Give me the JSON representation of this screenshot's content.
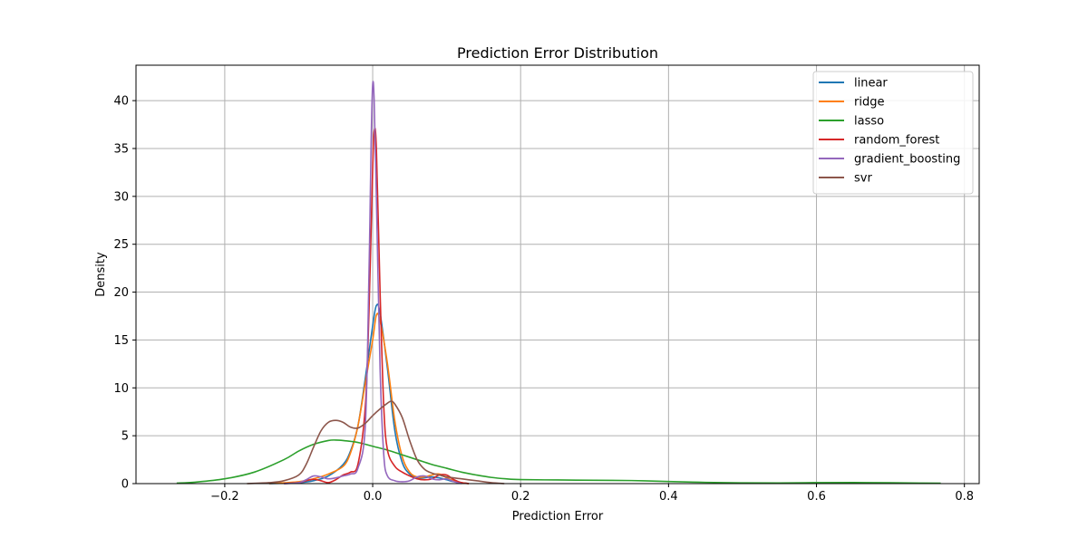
{
  "chart_data": {
    "type": "line",
    "title": "Prediction Error Distribution",
    "xlabel": "Prediction Error",
    "ylabel": "Density",
    "xlim": [
      -0.32,
      0.82
    ],
    "ylim": [
      0,
      43.7
    ],
    "xticks": [
      -0.2,
      0.0,
      0.2,
      0.4,
      0.6,
      0.8
    ],
    "xtick_labels": [
      "−0.2",
      "0.0",
      "0.2",
      "0.4",
      "0.6",
      "0.8"
    ],
    "yticks": [
      0,
      5,
      10,
      15,
      20,
      25,
      30,
      35,
      40
    ],
    "ytick_labels": [
      "0",
      "5",
      "10",
      "15",
      "20",
      "25",
      "30",
      "35",
      "40"
    ],
    "grid": true,
    "legend_position": "top-right",
    "series": [
      {
        "name": "linear",
        "color": "#1f77b4",
        "points": [
          [
            -0.14,
            0
          ],
          [
            -0.1,
            0.1
          ],
          [
            -0.08,
            0.3
          ],
          [
            -0.06,
            0.8
          ],
          [
            -0.04,
            2.0
          ],
          [
            -0.03,
            3.4
          ],
          [
            -0.02,
            6.0
          ],
          [
            -0.01,
            11.0
          ],
          [
            0.0,
            16.5
          ],
          [
            0.005,
            18.6
          ],
          [
            0.01,
            17.8
          ],
          [
            0.02,
            12.0
          ],
          [
            0.03,
            5.5
          ],
          [
            0.04,
            2.2
          ],
          [
            0.05,
            1.0
          ],
          [
            0.06,
            0.6
          ],
          [
            0.07,
            0.6
          ],
          [
            0.08,
            0.7
          ],
          [
            0.09,
            0.6
          ],
          [
            0.1,
            0.4
          ],
          [
            0.11,
            0.2
          ],
          [
            0.13,
            0
          ]
        ]
      },
      {
        "name": "ridge",
        "color": "#ff7f0e",
        "points": [
          [
            -0.14,
            0
          ],
          [
            -0.1,
            0.2
          ],
          [
            -0.08,
            0.5
          ],
          [
            -0.06,
            1.0
          ],
          [
            -0.04,
            1.8
          ],
          [
            -0.03,
            3.2
          ],
          [
            -0.02,
            6.0
          ],
          [
            -0.01,
            10.5
          ],
          [
            0.0,
            15.0
          ],
          [
            0.005,
            17.6
          ],
          [
            0.01,
            17.0
          ],
          [
            0.02,
            12.5
          ],
          [
            0.03,
            6.5
          ],
          [
            0.04,
            2.8
          ],
          [
            0.05,
            1.2
          ],
          [
            0.06,
            0.7
          ],
          [
            0.07,
            0.7
          ],
          [
            0.08,
            0.9
          ],
          [
            0.09,
            1.0
          ],
          [
            0.1,
            0.6
          ],
          [
            0.11,
            0.3
          ],
          [
            0.12,
            0.1
          ],
          [
            0.13,
            0
          ]
        ]
      },
      {
        "name": "lasso",
        "color": "#2ca02c",
        "points": [
          [
            -0.265,
            0.05
          ],
          [
            -0.24,
            0.15
          ],
          [
            -0.2,
            0.5
          ],
          [
            -0.16,
            1.2
          ],
          [
            -0.12,
            2.5
          ],
          [
            -0.1,
            3.4
          ],
          [
            -0.08,
            4.1
          ],
          [
            -0.06,
            4.5
          ],
          [
            -0.05,
            4.55
          ],
          [
            -0.04,
            4.5
          ],
          [
            -0.02,
            4.3
          ],
          [
            0.0,
            3.9
          ],
          [
            0.02,
            3.5
          ],
          [
            0.04,
            3.0
          ],
          [
            0.06,
            2.5
          ],
          [
            0.08,
            2.0
          ],
          [
            0.1,
            1.6
          ],
          [
            0.12,
            1.2
          ],
          [
            0.14,
            0.9
          ],
          [
            0.16,
            0.65
          ],
          [
            0.18,
            0.5
          ],
          [
            0.2,
            0.42
          ],
          [
            0.25,
            0.38
          ],
          [
            0.3,
            0.35
          ],
          [
            0.35,
            0.32
          ],
          [
            0.4,
            0.22
          ],
          [
            0.45,
            0.13
          ],
          [
            0.5,
            0.08
          ],
          [
            0.55,
            0.07
          ],
          [
            0.6,
            0.1
          ],
          [
            0.65,
            0.11
          ],
          [
            0.7,
            0.09
          ],
          [
            0.74,
            0.06
          ],
          [
            0.768,
            0.04
          ]
        ]
      },
      {
        "name": "random_forest",
        "color": "#d62728",
        "points": [
          [
            -0.12,
            0
          ],
          [
            -0.1,
            0.1
          ],
          [
            -0.09,
            0.3
          ],
          [
            -0.08,
            0.45
          ],
          [
            -0.07,
            0.3
          ],
          [
            -0.06,
            0.1
          ],
          [
            -0.05,
            0.4
          ],
          [
            -0.04,
            0.9
          ],
          [
            -0.03,
            1.2
          ],
          [
            -0.02,
            2.0
          ],
          [
            -0.01,
            8.0
          ],
          [
            -0.005,
            18.0
          ],
          [
            0.0,
            33.0
          ],
          [
            0.002,
            36.8
          ],
          [
            0.005,
            35.0
          ],
          [
            0.01,
            20.0
          ],
          [
            0.015,
            8.0
          ],
          [
            0.02,
            3.5
          ],
          [
            0.03,
            1.8
          ],
          [
            0.04,
            1.2
          ],
          [
            0.05,
            0.8
          ],
          [
            0.06,
            0.5
          ],
          [
            0.07,
            0.4
          ],
          [
            0.08,
            0.5
          ],
          [
            0.09,
            0.9
          ],
          [
            0.1,
            0.9
          ],
          [
            0.11,
            0.4
          ],
          [
            0.12,
            0.1
          ],
          [
            0.13,
            0
          ]
        ]
      },
      {
        "name": "gradient_boosting",
        "color": "#9467bd",
        "points": [
          [
            -0.12,
            0
          ],
          [
            -0.1,
            0.1
          ],
          [
            -0.09,
            0.4
          ],
          [
            -0.08,
            0.8
          ],
          [
            -0.07,
            0.7
          ],
          [
            -0.06,
            0.5
          ],
          [
            -0.05,
            0.6
          ],
          [
            -0.04,
            0.8
          ],
          [
            -0.03,
            1.0
          ],
          [
            -0.02,
            1.6
          ],
          [
            -0.01,
            6.0
          ],
          [
            -0.005,
            22.0
          ],
          [
            -0.002,
            36.0
          ],
          [
            0.0,
            41.7
          ],
          [
            0.002,
            40.0
          ],
          [
            0.005,
            30.0
          ],
          [
            0.01,
            12.0
          ],
          [
            0.015,
            3.0
          ],
          [
            0.02,
            0.8
          ],
          [
            0.03,
            0.3
          ],
          [
            0.04,
            0.2
          ],
          [
            0.05,
            0.3
          ],
          [
            0.06,
            0.7
          ],
          [
            0.07,
            0.8
          ],
          [
            0.08,
            0.5
          ],
          [
            0.09,
            0.4
          ],
          [
            0.1,
            0.5
          ],
          [
            0.11,
            0.2
          ],
          [
            0.12,
            0
          ]
        ]
      },
      {
        "name": "svr",
        "color": "#8c564b",
        "points": [
          [
            -0.17,
            0
          ],
          [
            -0.14,
            0.1
          ],
          [
            -0.12,
            0.3
          ],
          [
            -0.1,
            0.9
          ],
          [
            -0.09,
            2.0
          ],
          [
            -0.08,
            3.8
          ],
          [
            -0.07,
            5.5
          ],
          [
            -0.06,
            6.4
          ],
          [
            -0.05,
            6.6
          ],
          [
            -0.04,
            6.4
          ],
          [
            -0.03,
            5.9
          ],
          [
            -0.02,
            5.8
          ],
          [
            -0.01,
            6.3
          ],
          [
            0.0,
            7.1
          ],
          [
            0.01,
            7.8
          ],
          [
            0.02,
            8.4
          ],
          [
            0.025,
            8.6
          ],
          [
            0.03,
            8.3
          ],
          [
            0.04,
            6.9
          ],
          [
            0.05,
            4.5
          ],
          [
            0.06,
            2.5
          ],
          [
            0.07,
            1.5
          ],
          [
            0.08,
            1.1
          ],
          [
            0.09,
            0.9
          ],
          [
            0.1,
            0.7
          ],
          [
            0.12,
            0.5
          ],
          [
            0.14,
            0.3
          ],
          [
            0.16,
            0.1
          ],
          [
            0.178,
            0
          ]
        ]
      }
    ]
  }
}
